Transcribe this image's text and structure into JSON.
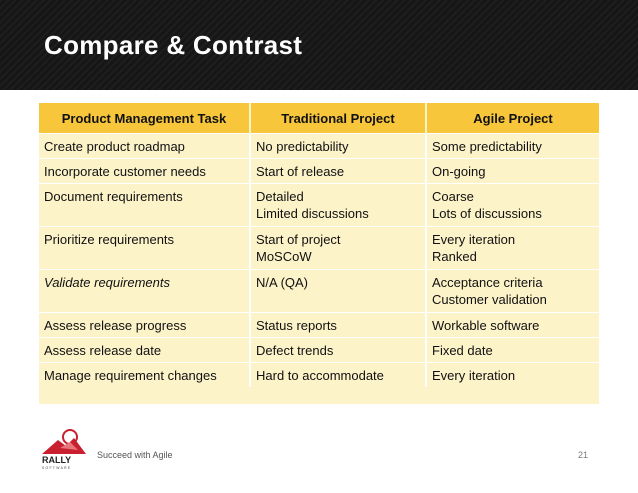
{
  "slide": {
    "title": "Compare & Contrast",
    "tagline": "Succeed with Agile",
    "page_number": "21",
    "logo_text": "RALLY",
    "logo_subtext": "SOFTWARE"
  },
  "table": {
    "headers": [
      "Product Management Task",
      "Traditional Project",
      "Agile Project"
    ],
    "rows": [
      {
        "task": "Create product roadmap",
        "traditional": [
          "No predictability"
        ],
        "agile": [
          "Some predictability"
        ]
      },
      {
        "task": "Incorporate customer needs",
        "traditional": [
          "Start of release"
        ],
        "agile": [
          "On-going"
        ]
      },
      {
        "task": "Document requirements",
        "traditional": [
          "Detailed",
          "Limited discussions"
        ],
        "agile": [
          "Coarse",
          "Lots of discussions"
        ]
      },
      {
        "task": "Prioritize requirements",
        "traditional": [
          "Start of project",
          "MoSCoW"
        ],
        "agile": [
          "Every iteration",
          "Ranked"
        ]
      },
      {
        "task": "Validate requirements",
        "traditional": [
          "N/A (QA)"
        ],
        "agile": [
          "Acceptance criteria",
          "Customer validation"
        ]
      },
      {
        "task": "Assess release progress",
        "traditional": [
          "Status reports"
        ],
        "agile": [
          "Workable software"
        ]
      },
      {
        "task": "Assess release date",
        "traditional": [
          "Defect trends"
        ],
        "agile": [
          "Fixed date"
        ]
      },
      {
        "task": "Manage requirement changes",
        "traditional": [
          "Hard to accommodate"
        ],
        "agile": [
          "Every iteration"
        ]
      }
    ]
  },
  "colors": {
    "header_bg": "#161616",
    "table_header": "#f7c63a",
    "table_body": "#fdf3c9",
    "logo_red": "#c8202f"
  }
}
